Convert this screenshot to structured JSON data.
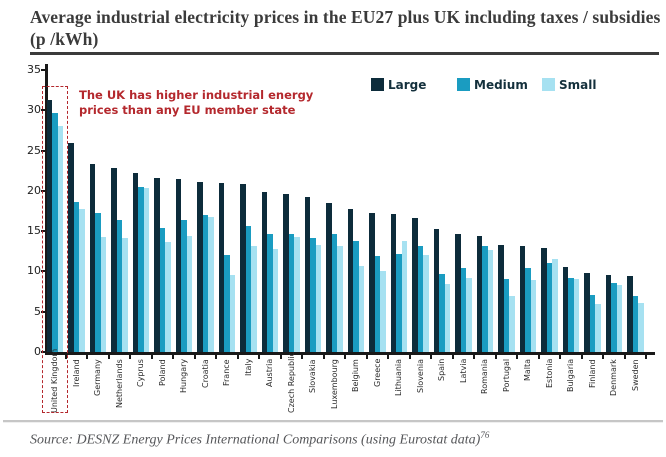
{
  "title_lines": [
    "Average industrial electricity prices in the EU27 plus UK including taxes",
    "/ subsidies (p /kWh)"
  ],
  "annotation": {
    "lines": [
      "The UK has higher industrial energy",
      "prices than any EU member state"
    ],
    "color": "#b4282d"
  },
  "source": {
    "text": "Source: DESNZ Energy Prices International Comparisons (using Eurostat data)",
    "superscript": "76"
  },
  "chart_data": {
    "type": "bar",
    "title": "Average industrial electricity prices in the EU27 plus UK including taxes / subsidies (p /kWh)",
    "xlabel": "",
    "ylabel": "",
    "ylim": [
      0,
      35
    ],
    "y_ticks": [
      0,
      5,
      10,
      15,
      20,
      25,
      30,
      35
    ],
    "grid": false,
    "legend_position": "top-right",
    "highlight_category": "United Kingdom",
    "categories": [
      "United Kingdom",
      "Ireland",
      "Germany",
      "Netherlands",
      "Cyprus",
      "Poland",
      "Hungary",
      "Croatia",
      "France",
      "Italy",
      "Austria",
      "Czech Republic",
      "Slovakia",
      "Luxembourg",
      "Belgium",
      "Greece",
      "Lithuania",
      "Slovenia",
      "Spain",
      "Latvia",
      "Romania",
      "Portugal",
      "Malta",
      "Estonia",
      "Bulgaria",
      "Finland",
      "Denmark",
      "Sweden"
    ],
    "series": [
      {
        "name": "Large",
        "color": "#0d2c3b",
        "values": [
          31.3,
          25.9,
          23.3,
          22.9,
          22.2,
          21.6,
          21.5,
          21.1,
          21.0,
          20.9,
          19.9,
          19.6,
          19.3,
          18.5,
          17.7,
          17.2,
          17.1,
          16.6,
          15.3,
          14.7,
          14.4,
          13.3,
          13.2,
          12.9,
          10.5,
          9.8,
          9.5,
          9.4
        ]
      },
      {
        "name": "Medium",
        "color": "#1a9cc1",
        "values": [
          29.7,
          18.6,
          17.2,
          16.4,
          20.5,
          15.4,
          16.4,
          17.0,
          12.0,
          15.7,
          14.6,
          14.7,
          14.1,
          14.6,
          13.8,
          11.9,
          12.2,
          13.1,
          9.7,
          10.4,
          13.1,
          9.1,
          10.4,
          11.1,
          9.2,
          7.1,
          8.6,
          6.9
        ]
      },
      {
        "name": "Small",
        "color": "#a6e1f1",
        "values": [
          28.0,
          17.7,
          14.3,
          14.2,
          20.3,
          13.6,
          14.4,
          16.7,
          9.5,
          13.1,
          12.8,
          14.3,
          13.3,
          13.1,
          10.7,
          10.0,
          13.8,
          12.0,
          8.5,
          9.2,
          12.6,
          6.9,
          9.0,
          11.5,
          9.1,
          5.9,
          8.3,
          6.1
        ]
      }
    ]
  },
  "axis_color": "#191919"
}
